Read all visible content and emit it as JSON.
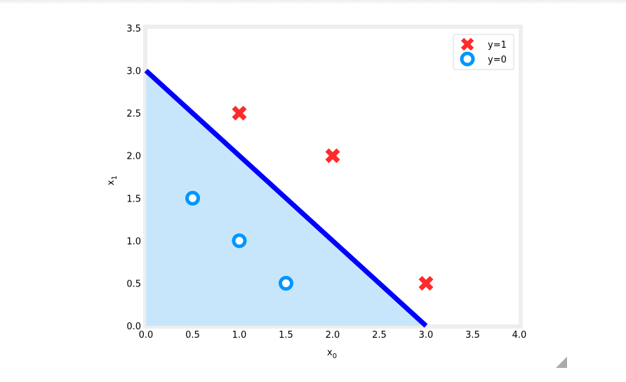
{
  "chart_data": {
    "type": "scatter",
    "xlabel": "x0",
    "ylabel": "x1",
    "xlim": [
      0,
      4.0
    ],
    "ylim": [
      0,
      3.5
    ],
    "xticks": [
      "0.0",
      "0.5",
      "1.0",
      "1.5",
      "2.0",
      "2.5",
      "3.0",
      "3.5",
      "4.0"
    ],
    "yticks": [
      "0.0",
      "0.5",
      "1.0",
      "1.5",
      "2.0",
      "2.5",
      "3.0",
      "3.5"
    ],
    "grid": false,
    "legend_position": "top-right",
    "series": [
      {
        "name": "y=1",
        "marker": "x",
        "color": "#ff2a2a",
        "points": [
          [
            1,
            2.5
          ],
          [
            2,
            2
          ],
          [
            3,
            0.5
          ]
        ]
      },
      {
        "name": "y=0",
        "marker": "o",
        "color": "#0096ff",
        "points": [
          [
            0.5,
            1.5
          ],
          [
            1,
            1
          ],
          [
            1.5,
            0.5
          ]
        ]
      }
    ],
    "decision_boundary": {
      "points": [
        [
          0,
          3
        ],
        [
          3,
          0
        ]
      ],
      "color": "#0000ff"
    },
    "shaded_region": {
      "points": [
        [
          0,
          0
        ],
        [
          0,
          3
        ],
        [
          3,
          0
        ]
      ],
      "color": "#c8e6fb"
    }
  }
}
